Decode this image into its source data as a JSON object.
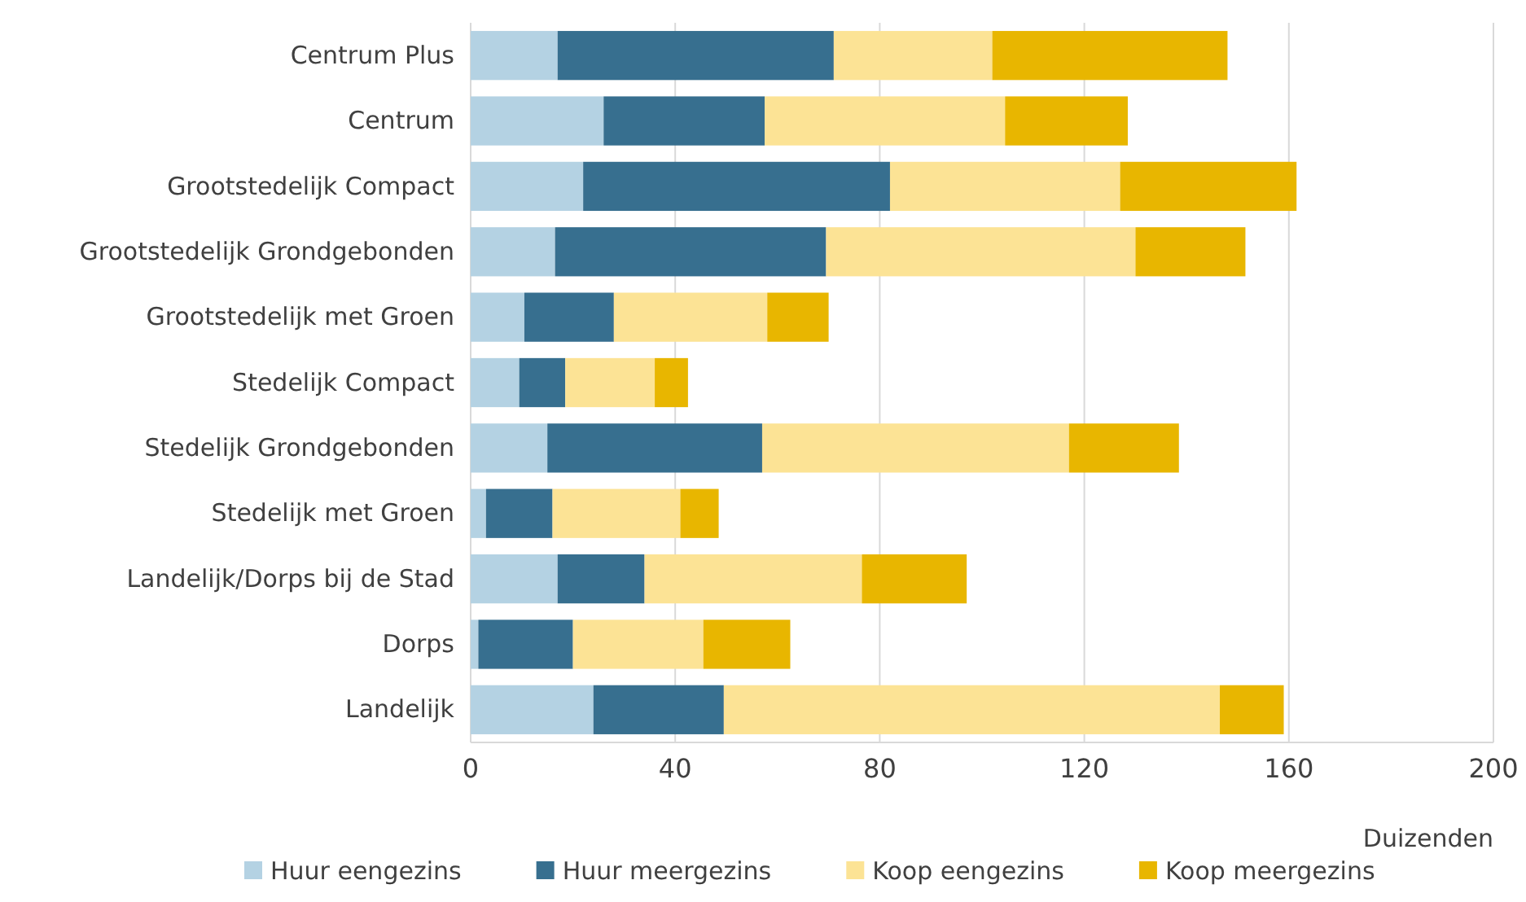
{
  "chart_data": {
    "type": "bar",
    "orientation": "horizontal",
    "stacked": true,
    "xlabel": "Duizenden",
    "categories": [
      "Centrum Plus",
      "Centrum",
      "Grootstedelijk Compact",
      "Grootstedelijk Grondgebonden",
      "Grootstedelijk met Groen",
      "Stedelijk Compact",
      "Stedelijk Grondgebonden",
      "Stedelijk met Groen",
      "Landelijk/Dorps bij de Stad",
      "Dorps",
      "Landelijk"
    ],
    "series": [
      {
        "name": "Huur eengezins",
        "color": "#b4d2e3",
        "values": [
          17,
          26,
          22,
          16.5,
          10.5,
          9.5,
          15,
          3,
          17,
          1.5,
          24
        ]
      },
      {
        "name": "Huur meergezins",
        "color": "#376f8f",
        "values": [
          54,
          31.5,
          60,
          53,
          17.5,
          9,
          42,
          13,
          17,
          18.5,
          25.5
        ]
      },
      {
        "name": "Koop eengezins",
        "color": "#fce395",
        "values": [
          31,
          47,
          45,
          60.5,
          30,
          17.5,
          60,
          25,
          42.5,
          25.5,
          97
        ]
      },
      {
        "name": "Koop meergezins",
        "color": "#e8b600",
        "values": [
          46,
          24,
          34.5,
          21.5,
          12,
          6.5,
          21.5,
          7.5,
          20.5,
          17,
          12.5
        ]
      }
    ],
    "xlim": [
      0,
      200
    ],
    "xticks": [
      0,
      40,
      80,
      120,
      160,
      200
    ],
    "grid": "x",
    "legend": "bottom"
  }
}
